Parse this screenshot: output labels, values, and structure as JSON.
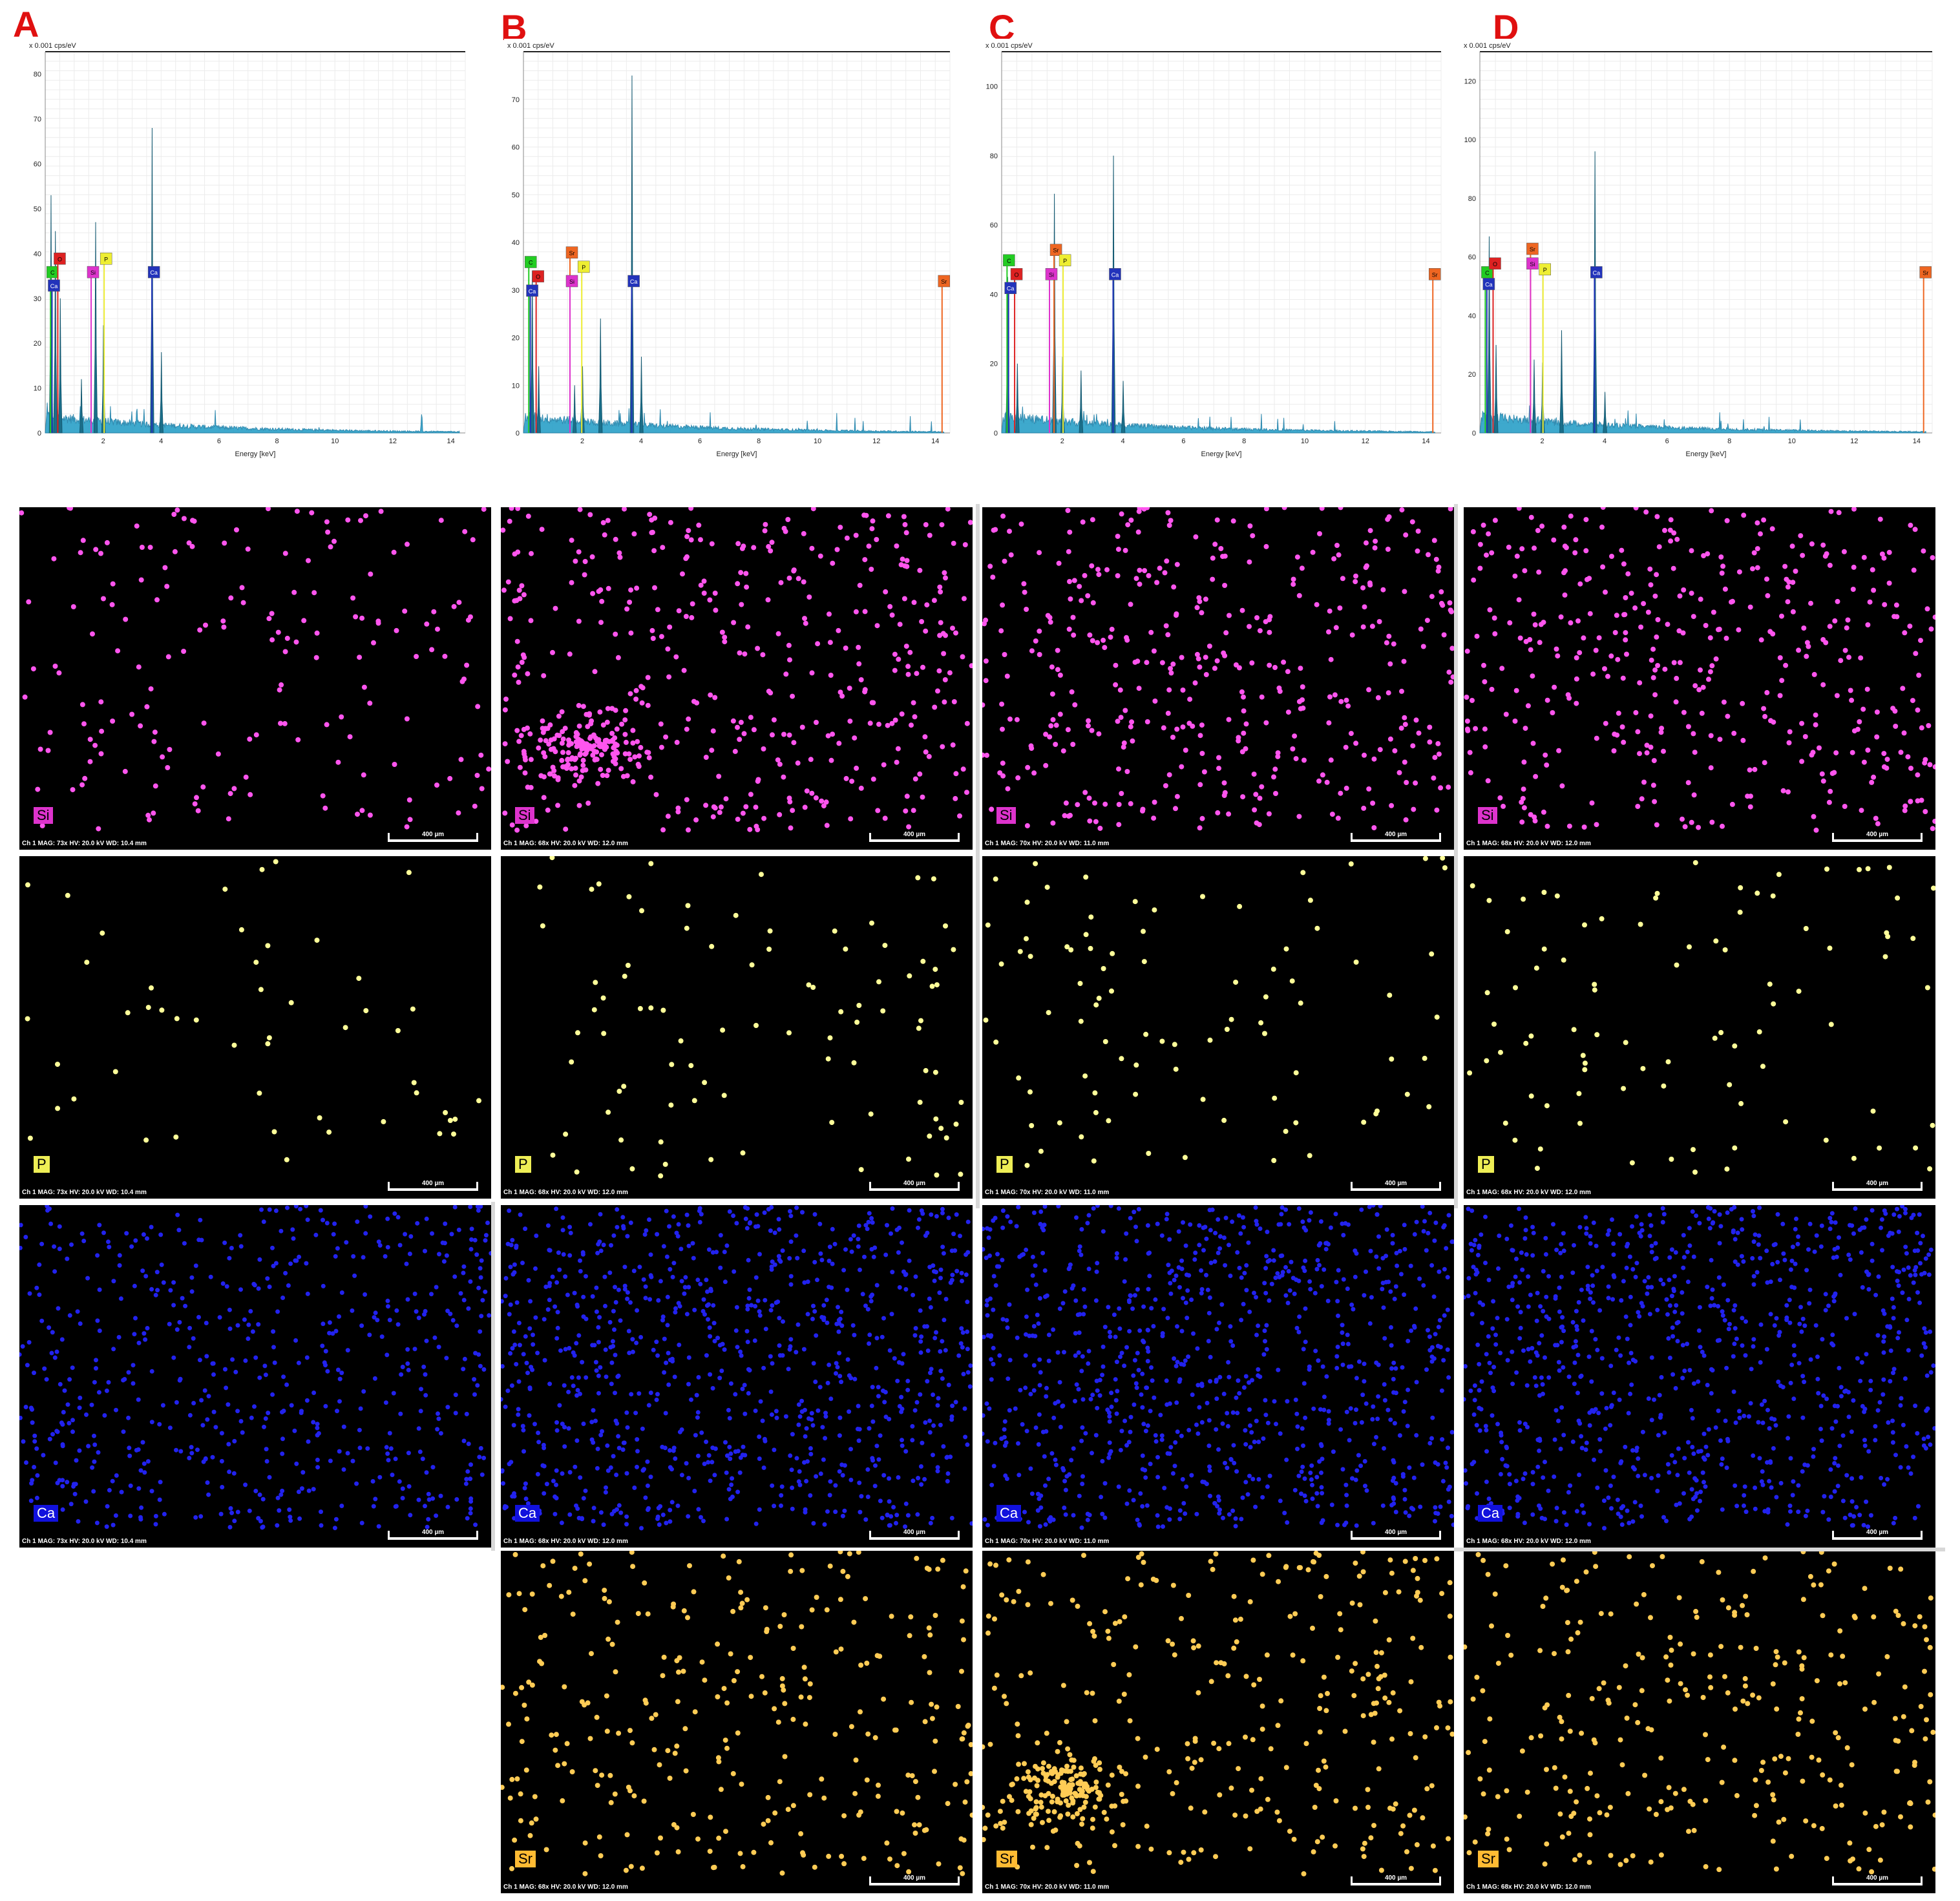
{
  "panels": [
    {
      "letter": "A",
      "maps": [
        "Si",
        "P",
        "Ca"
      ],
      "footer": "Ch 1   MAG: 73x   HV: 20.0 kV   WD: 10.4 mm"
    },
    {
      "letter": "B",
      "maps": [
        "Si",
        "P",
        "Ca",
        "Sr"
      ],
      "footer": "Ch 1   MAG: 68x   HV: 20.0 kV   WD: 12.0 mm"
    },
    {
      "letter": "C",
      "maps": [
        "Si",
        "P",
        "Ca",
        "Sr"
      ],
      "footer": "Ch 1   MAG: 70x   HV: 20.0 kV   WD: 11.0 mm"
    },
    {
      "letter": "D",
      "maps": [
        "Si",
        "P",
        "Ca",
        "Sr"
      ],
      "footer": "Ch 1   MAG: 68x   HV: 20.0 kV   WD: 12.0 mm"
    }
  ],
  "scale_label": "400 µm",
  "element_colors": {
    "Si": "#ff55ee",
    "P": "#ffff99",
    "Ca": "#2222ee",
    "Sr": "#ffcc55"
  },
  "chart_data": [
    {
      "type": "line",
      "panel": "A",
      "ylabel": "x 0.001 cps/eV",
      "xlabel": "Energy [keV]",
      "xlim": [
        0,
        14.5
      ],
      "ylim": [
        0,
        85
      ],
      "yticks": [
        0,
        10,
        20,
        30,
        40,
        50,
        60,
        70,
        80
      ],
      "xticks": [
        2,
        4,
        6,
        8,
        10,
        12,
        14
      ],
      "peaks": [
        {
          "x": 0.2,
          "y": 53
        },
        {
          "x": 0.35,
          "y": 45
        },
        {
          "x": 0.52,
          "y": 30
        },
        {
          "x": 1.25,
          "y": 12
        },
        {
          "x": 1.74,
          "y": 47
        },
        {
          "x": 2.01,
          "y": 24
        },
        {
          "x": 3.69,
          "y": 68
        },
        {
          "x": 4.01,
          "y": 18
        }
      ],
      "labels": [
        {
          "text": "C",
          "x": 0.05,
          "y": 36
        },
        {
          "text": "O",
          "x": 0.3,
          "y": 39
        },
        {
          "text": "Ca",
          "x": 0.1,
          "y": 33
        },
        {
          "text": "Si",
          "x": 1.45,
          "y": 36
        },
        {
          "text": "P",
          "x": 1.9,
          "y": 39
        },
        {
          "text": "Ca",
          "x": 3.55,
          "y": 36
        }
      ]
    },
    {
      "type": "line",
      "panel": "B",
      "ylabel": "x 0.001 cps/eV",
      "xlabel": "Energy [keV]",
      "xlim": [
        0,
        14.5
      ],
      "ylim": [
        0,
        80
      ],
      "yticks": [
        0,
        10,
        20,
        30,
        40,
        50,
        60,
        70
      ],
      "xticks": [
        2,
        4,
        6,
        8,
        10,
        12,
        14
      ],
      "peaks": [
        {
          "x": 0.3,
          "y": 34
        },
        {
          "x": 0.52,
          "y": 14
        },
        {
          "x": 1.74,
          "y": 10
        },
        {
          "x": 2.01,
          "y": 14
        },
        {
          "x": 2.62,
          "y": 24
        },
        {
          "x": 3.69,
          "y": 75
        },
        {
          "x": 4.01,
          "y": 16
        }
      ],
      "labels": [
        {
          "text": "C",
          "x": 0.05,
          "y": 36
        },
        {
          "text": "O",
          "x": 0.3,
          "y": 33
        },
        {
          "text": "Ca",
          "x": 0.1,
          "y": 30
        },
        {
          "text": "Sr",
          "x": 1.45,
          "y": 38
        },
        {
          "text": "P",
          "x": 1.85,
          "y": 35
        },
        {
          "text": "Si",
          "x": 1.45,
          "y": 32
        },
        {
          "text": "Ca",
          "x": 3.55,
          "y": 32
        },
        {
          "text": "Sr",
          "x": 14.1,
          "y": 32
        }
      ]
    },
    {
      "type": "line",
      "panel": "C",
      "ylabel": "x 0.001 cps/eV",
      "xlabel": "Energy [keV]",
      "xlim": [
        0,
        14.5
      ],
      "ylim": [
        0,
        110
      ],
      "yticks": [
        0,
        20,
        40,
        60,
        80,
        100
      ],
      "xticks": [
        2,
        4,
        6,
        8,
        10,
        12,
        14
      ],
      "peaks": [
        {
          "x": 0.2,
          "y": 45
        },
        {
          "x": 0.52,
          "y": 20
        },
        {
          "x": 1.74,
          "y": 69
        },
        {
          "x": 2.01,
          "y": 22
        },
        {
          "x": 2.62,
          "y": 18
        },
        {
          "x": 3.69,
          "y": 80
        },
        {
          "x": 4.01,
          "y": 15
        }
      ],
      "labels": [
        {
          "text": "C",
          "x": 0.05,
          "y": 50
        },
        {
          "text": "O",
          "x": 0.3,
          "y": 46
        },
        {
          "text": "Ca",
          "x": 0.1,
          "y": 42
        },
        {
          "text": "Sr",
          "x": 1.6,
          "y": 53
        },
        {
          "text": "P",
          "x": 1.9,
          "y": 50
        },
        {
          "text": "Si",
          "x": 1.45,
          "y": 46
        },
        {
          "text": "Ca",
          "x": 3.55,
          "y": 46
        },
        {
          "text": "Sr",
          "x": 14.1,
          "y": 46
        }
      ]
    },
    {
      "type": "line",
      "panel": "D",
      "ylabel": "x 0.001 cps/eV",
      "xlabel": "Energy [keV]",
      "xlim": [
        0,
        14.5
      ],
      "ylim": [
        0,
        130
      ],
      "yticks": [
        0,
        20,
        40,
        60,
        80,
        100,
        120
      ],
      "xticks": [
        2,
        4,
        6,
        8,
        10,
        12,
        14
      ],
      "peaks": [
        {
          "x": 0.3,
          "y": 67
        },
        {
          "x": 0.52,
          "y": 30
        },
        {
          "x": 1.74,
          "y": 25
        },
        {
          "x": 2.01,
          "y": 24
        },
        {
          "x": 2.62,
          "y": 35
        },
        {
          "x": 3.69,
          "y": 96
        },
        {
          "x": 4.01,
          "y": 14
        }
      ],
      "labels": [
        {
          "text": "C",
          "x": 0.05,
          "y": 55
        },
        {
          "text": "O",
          "x": 0.3,
          "y": 58
        },
        {
          "text": "Ca",
          "x": 0.1,
          "y": 51
        },
        {
          "text": "Sr",
          "x": 1.5,
          "y": 63
        },
        {
          "text": "P",
          "x": 1.9,
          "y": 56
        },
        {
          "text": "Si",
          "x": 1.5,
          "y": 58
        },
        {
          "text": "Ca",
          "x": 3.55,
          "y": 55
        },
        {
          "text": "Sr",
          "x": 14.1,
          "y": 55
        }
      ]
    }
  ]
}
